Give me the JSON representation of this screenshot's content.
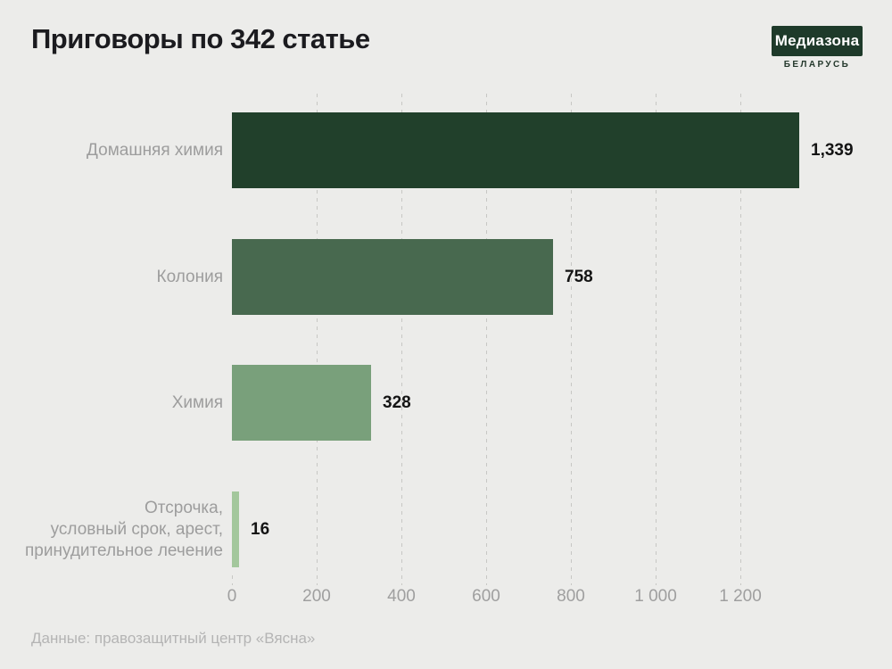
{
  "page": {
    "background_color": "#ececea"
  },
  "header": {
    "title": "Приговоры по 342 статье",
    "logo": {
      "brand": "Медиазона",
      "region": "БЕЛАРУСЬ",
      "box_color": "#1e3a2a",
      "text_color": "#ffffff"
    }
  },
  "chart_data": {
    "type": "bar",
    "orientation": "horizontal",
    "title": "Приговоры по 342 статье",
    "categories": [
      [
        "Домашняя химия"
      ],
      [
        "Колония"
      ],
      [
        "Химия"
      ],
      [
        "Отсрочка,",
        "условный срок, арест,",
        "принудительное лечение"
      ]
    ],
    "values": [
      1339,
      758,
      328,
      16
    ],
    "value_labels": [
      "1,339",
      "758",
      "328",
      "16"
    ],
    "bar_colors": [
      "#21402b",
      "#48694f",
      "#79a07b",
      "#a3c79c"
    ],
    "xlim": [
      0,
      1339
    ],
    "x_ticks": [
      0,
      200,
      400,
      600,
      800,
      1000,
      1200
    ],
    "x_tick_labels": [
      "0",
      "200",
      "400",
      "600",
      "800",
      "1 000",
      "1 200"
    ],
    "grid": "dashed-vertical",
    "grid_color": "#c7c7c4",
    "label_color": "#9d9d9d",
    "value_color": "#141414"
  },
  "footer": {
    "source": "Данные: правозащитный центр «Вясна»"
  }
}
